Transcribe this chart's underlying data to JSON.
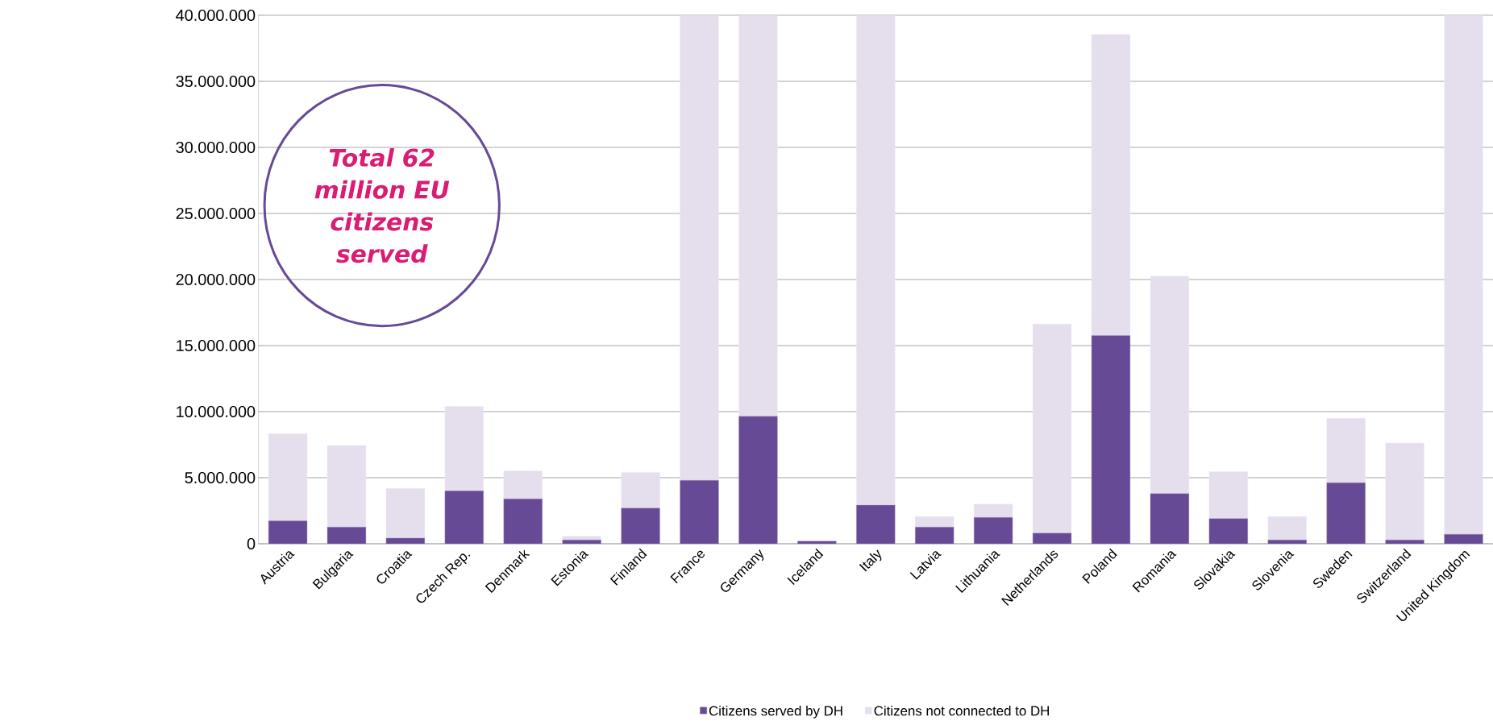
{
  "chart_data": {
    "type": "bar",
    "stacked": true,
    "categories": [
      "Austria",
      "Bulgaria",
      "Croatia",
      "Czech Rep.",
      "Denmark",
      "Estonia",
      "Finland",
      "France",
      "Germany",
      "Iceland",
      "Italy",
      "Latvia",
      "Lithuania",
      "Netherlands",
      "Poland",
      "Romania",
      "Slovakia",
      "Slovenia",
      "Sweden",
      "Switzerland",
      "United Kingdom"
    ],
    "series": [
      {
        "name": "Citizens served by DH",
        "color": "#674a96",
        "values": [
          1730000,
          1260000,
          430000,
          4000000,
          3400000,
          290000,
          2700000,
          4800000,
          9640000,
          200000,
          2920000,
          1260000,
          1990000,
          800000,
          15760000,
          3800000,
          1910000,
          290000,
          4620000,
          290000,
          720000
        ]
      },
      {
        "name": "Citizens not connected to DH",
        "color": "#e5dfed",
        "values": [
          6610000,
          6180000,
          3760000,
          6400000,
          2120000,
          290000,
          2700000,
          35200000,
          30360000,
          0,
          37080000,
          800000,
          1010000,
          15830000,
          22790000,
          16450000,
          3540000,
          1770000,
          4880000,
          7330000,
          39280000
        ]
      }
    ],
    "ylim": [
      0,
      40000000
    ],
    "yticks": [
      0,
      {
        "value": 5000000,
        "label": "5.000.000"
      },
      {
        "value": 10000000,
        "label": "10.000.000"
      },
      {
        "value": 15000000,
        "label": "15.000.000"
      },
      {
        "value": 20000000,
        "label": "20.000.000"
      },
      {
        "value": 25000000,
        "label": "25.000.000"
      },
      {
        "value": 30000000,
        "label": "30.000.000"
      },
      {
        "value": 35000000,
        "label": "35.000.000"
      },
      {
        "value": 40000000,
        "label": "40.000.000"
      }
    ],
    "grid": "y",
    "legend": "bottom",
    "annotations": [
      "Total 62 million EU citizens served"
    ]
  }
}
